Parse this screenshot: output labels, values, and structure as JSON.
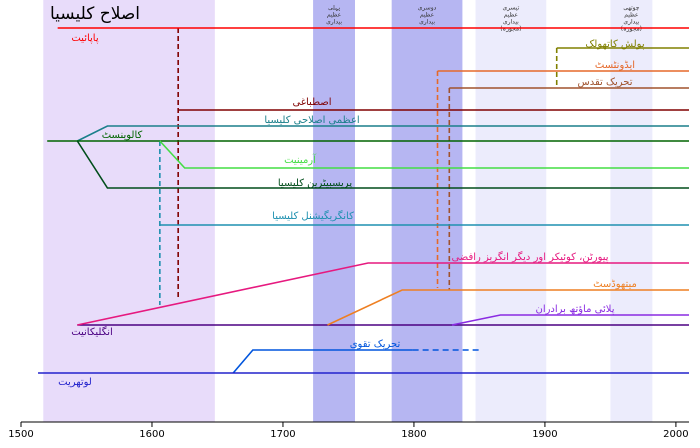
{
  "chart_data": {
    "type": "timeline",
    "title": "اصلاح کلیسیا",
    "xlim": [
      1500,
      2010
    ],
    "xticks": [
      1500,
      1600,
      1700,
      1800,
      1900,
      2000
    ],
    "bands": [
      {
        "start": 1517,
        "end": 1648,
        "color": "#e8dcfa"
      },
      {
        "start": 1723,
        "end": 1755,
        "color": "#b6b6f2",
        "label": [
          "پہلی",
          "عظیم",
          "بیداری"
        ]
      },
      {
        "start": 1783,
        "end": 1837,
        "color": "#b6b6f2",
        "label": [
          "دوسری",
          "عظیم",
          "بیداری"
        ]
      },
      {
        "start": 1847,
        "end": 1901,
        "color": "#ececfc",
        "label": [
          "تیسری",
          "عظیم",
          "بیداری",
          "(مجوزہ)"
        ]
      },
      {
        "start": 1950,
        "end": 1982,
        "color": "#ececfc",
        "label": [
          "چوتھی",
          "عظیم",
          "بیداری",
          "(مجوزہ)"
        ]
      }
    ],
    "series": [
      {
        "name": "پاپائیت",
        "color": "#ff0000",
        "x": [
          1528,
          2010
        ]
      },
      {
        "name": "پولش کاتھولک",
        "color": "#808000",
        "x": [
          1909,
          2010
        ]
      },
      {
        "name": "ایڈونٹسٹ",
        "color": "#e5682a",
        "x": [
          1818,
          2010
        ]
      },
      {
        "name": "تحریک تقدس",
        "color": "#a0522d",
        "x": [
          1827,
          2010
        ]
      },
      {
        "name": "اصطباغی",
        "color": "#800000",
        "x": [
          1620,
          2010
        ]
      },
      {
        "name": "اعظمی اصلاحی کلیسیا",
        "color": "#1a7f8a",
        "x": [
          1543,
          1566,
          2010
        ]
      },
      {
        "name": "کالوینسٹ",
        "color": "#006400",
        "x": [
          1520,
          2010
        ]
      },
      {
        "name": "آرمینیت",
        "color": "#44dd44",
        "x": [
          1606,
          1625,
          2010
        ]
      },
      {
        "name": "پریسبیٹرین کلیسیا",
        "color": "#004d1a",
        "x": [
          1543,
          1566,
          2010
        ]
      },
      {
        "name": "کانگریگیشنل کلیسیا",
        "color": "#1e90b0",
        "x": [
          1606,
          2010
        ]
      },
      {
        "name": "انگلیکانیت",
        "color": "#4b0082",
        "x": [
          1543,
          2010
        ]
      },
      {
        "name": "پیورٹن، کوئیکر اور دیگر انگریز رافضی",
        "color": "#e6197f",
        "x": [
          1543,
          1765,
          2010
        ]
      },
      {
        "name": "میتھوڈسٹ",
        "color": "#ee7f22",
        "x": [
          1734,
          1791,
          2010
        ]
      },
      {
        "name": "پلائی ماؤتھ برادران",
        "color": "#8a2be2",
        "x": [
          1829,
          1866,
          2010
        ]
      },
      {
        "name": "تحریک تقوی",
        "color": "#0055dd",
        "x": [
          1662,
          1677,
          1799
        ],
        "dashed_to": 1850
      },
      {
        "name": "لوتھریت",
        "color": "#2222cc",
        "x": [
          1513,
          2010
        ]
      }
    ],
    "connectors": [
      {
        "x": 1620,
        "color": "#800000"
      },
      {
        "x": 1606,
        "color": "#1e90b0"
      },
      {
        "x": 1818,
        "color": "#e5682a"
      },
      {
        "x": 1827,
        "color": "#a0522d"
      },
      {
        "x": 1909,
        "color": "#808000"
      }
    ]
  }
}
